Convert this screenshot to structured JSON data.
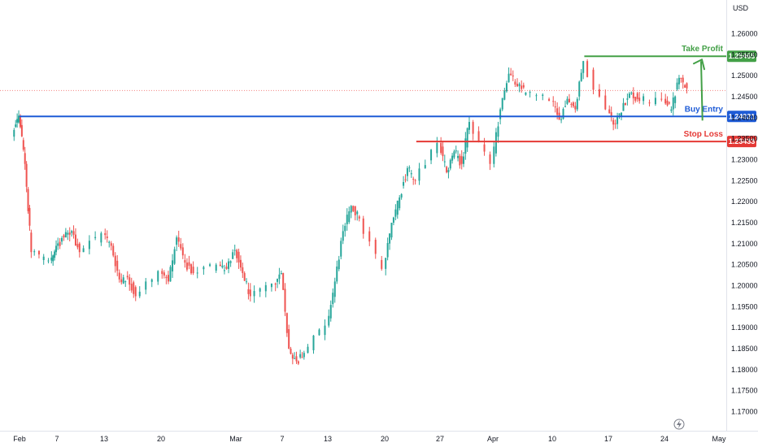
{
  "chart_data": {
    "type": "candlestick",
    "currency": "USD",
    "ylim": [
      1.167,
      1.2665
    ],
    "y_ticks": [
      1.26,
      1.255,
      1.25,
      1.245,
      1.24,
      1.235,
      1.23,
      1.225,
      1.22,
      1.215,
      1.21,
      1.205,
      1.2,
      1.195,
      1.19,
      1.185,
      1.18,
      1.175,
      1.17
    ],
    "y_tick_labels": [
      "1.26000",
      "1.25500",
      "1.25000",
      "1.24500",
      "1.24000",
      "1.23500",
      "1.23000",
      "1.22500",
      "1.22000",
      "1.21500",
      "1.21000",
      "1.20500",
      "1.20000",
      "1.19500",
      "1.19000",
      "1.18500",
      "1.18000",
      "1.17500",
      "1.17000"
    ],
    "x_range": [
      "2023-01-31",
      "2023-05-01"
    ],
    "x_ticks": [
      {
        "label": "Feb",
        "date": "2023-02-01"
      },
      {
        "label": "7",
        "date": "2023-02-07"
      },
      {
        "label": "13",
        "date": "2023-02-13"
      },
      {
        "label": "20",
        "date": "2023-02-20"
      },
      {
        "label": "Mar",
        "date": "2023-03-01"
      },
      {
        "label": "7",
        "date": "2023-03-07"
      },
      {
        "label": "13",
        "date": "2023-03-13"
      },
      {
        "label": "20",
        "date": "2023-03-20"
      },
      {
        "label": "27",
        "date": "2023-03-27"
      },
      {
        "label": "Apr",
        "date": "2023-04-03"
      },
      {
        "label": "10",
        "date": "2023-04-10"
      },
      {
        "label": "17",
        "date": "2023-04-17"
      },
      {
        "label": "24",
        "date": "2023-04-24"
      },
      {
        "label": "May",
        "date": "2023-05-01"
      }
    ],
    "levels": [
      {
        "name": "Take Profit",
        "value": 1.25465,
        "tag": "1.25465",
        "color": "#43a047",
        "from_date": "2023-04-14"
      },
      {
        "name": "Buy Entry",
        "value": 1.24031,
        "tag": "1.24031",
        "color": "#1e5bd6",
        "from_date": "2023-02-01"
      },
      {
        "name": "Stop Loss",
        "value": 1.23433,
        "tag": "1.23433",
        "color": "#e53935",
        "from_date": "2023-03-24"
      }
    ],
    "current_price": 1.2465,
    "path": [
      [
        "2023-01-31",
        1.2355
      ],
      [
        "2023-02-01",
        1.2405
      ],
      [
        "2023-02-02",
        1.229
      ],
      [
        "2023-02-03",
        1.208
      ],
      [
        "2023-02-06",
        1.206
      ],
      [
        "2023-02-07",
        1.2095
      ],
      [
        "2023-02-08",
        1.2115
      ],
      [
        "2023-02-09",
        1.213
      ],
      [
        "2023-02-10",
        1.208
      ],
      [
        "2023-02-13",
        1.2125
      ],
      [
        "2023-02-14",
        1.2095
      ],
      [
        "2023-02-15",
        1.2015
      ],
      [
        "2023-02-16",
        1.202
      ],
      [
        "2023-02-17",
        1.1975
      ],
      [
        "2023-02-20",
        1.2035
      ],
      [
        "2023-02-21",
        1.201
      ],
      [
        "2023-02-22",
        1.2115
      ],
      [
        "2023-02-23",
        1.2055
      ],
      [
        "2023-02-24",
        1.203
      ],
      [
        "2023-02-27",
        1.205
      ],
      [
        "2023-02-28",
        1.204
      ],
      [
        "2023-03-01",
        1.2085
      ],
      [
        "2023-03-02",
        1.203
      ],
      [
        "2023-03-03",
        1.1975
      ],
      [
        "2023-03-06",
        1.2005
      ],
      [
        "2023-03-07",
        1.203
      ],
      [
        "2023-03-08",
        1.185
      ],
      [
        "2023-03-09",
        1.182
      ],
      [
        "2023-03-10",
        1.184
      ],
      [
        "2023-03-13",
        1.1905
      ],
      [
        "2023-03-14",
        1.201
      ],
      [
        "2023-03-15",
        1.213
      ],
      [
        "2023-03-16",
        1.219
      ],
      [
        "2023-03-17",
        1.216
      ],
      [
        "2023-03-20",
        1.204
      ],
      [
        "2023-03-21",
        1.215
      ],
      [
        "2023-03-22",
        1.221
      ],
      [
        "2023-03-23",
        1.228
      ],
      [
        "2023-03-24",
        1.225
      ],
      [
        "2023-03-27",
        1.234
      ],
      [
        "2023-03-28",
        1.227
      ],
      [
        "2023-03-29",
        1.232
      ],
      [
        "2023-03-30",
        1.229
      ],
      [
        "2023-03-31",
        1.239
      ],
      [
        "2023-04-03",
        1.229
      ],
      [
        "2023-04-04",
        1.242
      ],
      [
        "2023-04-05",
        1.2505
      ],
      [
        "2023-04-06",
        1.2475
      ],
      [
        "2023-04-07",
        1.246
      ],
      [
        "2023-04-10",
        1.244
      ],
      [
        "2023-04-11",
        1.2395
      ],
      [
        "2023-04-12",
        1.2445
      ],
      [
        "2023-04-13",
        1.242
      ],
      [
        "2023-04-14",
        1.2535
      ],
      [
        "2023-04-17",
        1.242
      ],
      [
        "2023-04-18",
        1.2385
      ],
      [
        "2023-04-19",
        1.2435
      ],
      [
        "2023-04-20",
        1.246
      ],
      [
        "2023-04-21",
        1.244
      ],
      [
        "2023-04-24",
        1.2445
      ],
      [
        "2023-04-25",
        1.242
      ],
      [
        "2023-04-26",
        1.2495
      ],
      [
        "2023-04-27",
        1.247
      ]
    ]
  }
}
